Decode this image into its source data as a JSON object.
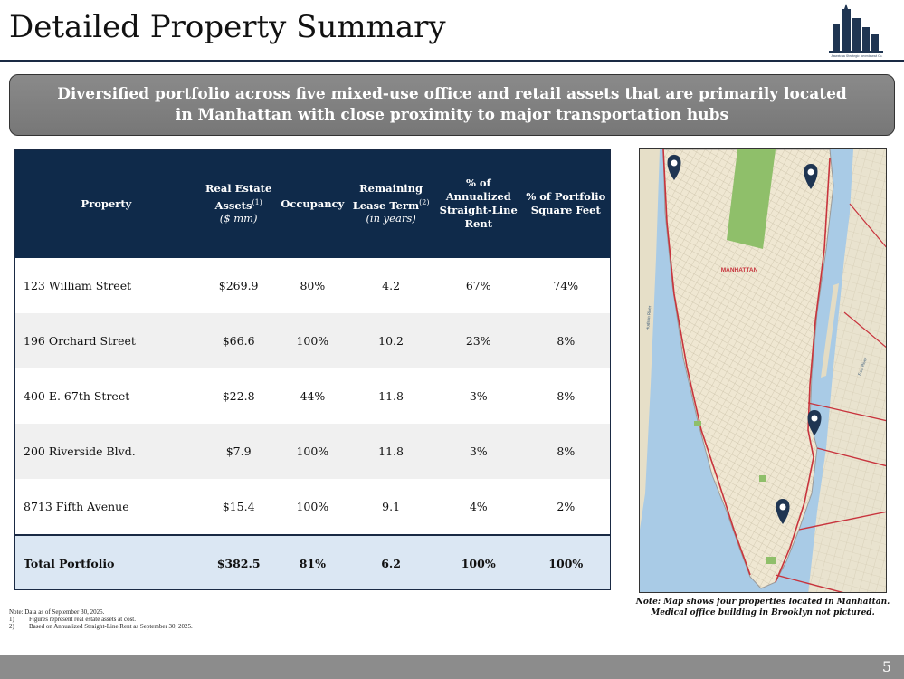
{
  "title": "Detailed Property Summary",
  "logo_text": "American Strategic Investment Co.",
  "banner": "Diversified portfolio across five mixed-use office and retail assets that are primarily located in Manhattan with close proximity to major transportation hubs",
  "table": {
    "headers": {
      "property": "Property",
      "assets": "Real Estate Assets",
      "assets_sup": "(1)",
      "assets_unit": "($ mm)",
      "occupancy": "Occupancy",
      "lease": "Remaining Lease Term",
      "lease_sup": "(2)",
      "lease_unit": "(in years)",
      "rent": "% of Annualized Straight-Line Rent",
      "sqft": "% of Portfolio Square Feet"
    },
    "rows": [
      {
        "property": "123 William Street",
        "assets": "$269.9",
        "occupancy": "80%",
        "lease": "4.2",
        "rent": "67%",
        "sqft": "74%"
      },
      {
        "property": "196 Orchard Street",
        "assets": "$66.6",
        "occupancy": "100%",
        "lease": "10.2",
        "rent": "23%",
        "sqft": "8%"
      },
      {
        "property": "400 E. 67th Street",
        "assets": "$22.8",
        "occupancy": "44%",
        "lease": "11.8",
        "rent": "3%",
        "sqft": "8%"
      },
      {
        "property": "200 Riverside Blvd.",
        "assets": "$7.9",
        "occupancy": "100%",
        "lease": "11.8",
        "rent": "3%",
        "sqft": "8%"
      },
      {
        "property": "8713 Fifth Avenue",
        "assets": "$15.4",
        "occupancy": "100%",
        "lease": "9.1",
        "rent": "4%",
        "sqft": "2%"
      }
    ],
    "total": {
      "property": "Total Portfolio",
      "assets": "$382.5",
      "occupancy": "81%",
      "lease": "6.2",
      "rent": "100%",
      "sqft": "100%"
    }
  },
  "map": {
    "label": "MANHATTAN",
    "note": "Note: Map shows four properties located in Manhattan. Medical office building in Brooklyn not pictured.",
    "pin_icon": "location-pin-icon",
    "pin_color": "#1f3552",
    "river_labels": [
      "East River",
      "Hudson River"
    ]
  },
  "footnotes": {
    "note": "Note: Data as of September 30, 2025.",
    "items": [
      {
        "num": "1)",
        "text": "Figures represent real estate assets at cost."
      },
      {
        "num": "2)",
        "text": "Based on Annualized Straight-Line Rent as September 30, 2025."
      }
    ]
  },
  "page_number": "5",
  "colors": {
    "header_navy": "#0f2a4a",
    "banner_gray": "#7f7f7f",
    "total_row": "#dbe7f3",
    "footer_gray": "#8c8c8c"
  }
}
